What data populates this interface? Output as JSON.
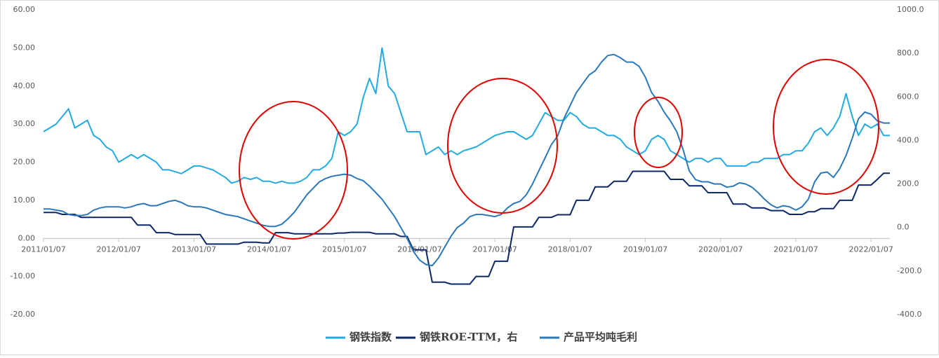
{
  "chart_data": {
    "type": "line",
    "x": [
      "2011/01/07",
      "2011/02/07",
      "2011/03/07",
      "2011/04/07",
      "2011/05/07",
      "2011/06/07",
      "2011/07/07",
      "2011/08/07",
      "2011/09/07",
      "2011/10/07",
      "2011/11/07",
      "2011/12/07",
      "2012/01/07",
      "2012/02/07",
      "2012/03/07",
      "2012/04/07",
      "2012/05/07",
      "2012/06/07",
      "2012/07/07",
      "2012/08/07",
      "2012/09/07",
      "2012/10/07",
      "2012/11/07",
      "2012/12/07",
      "2013/01/07",
      "2013/02/07",
      "2013/03/07",
      "2013/04/07",
      "2013/05/07",
      "2013/06/07",
      "2013/07/07",
      "2013/08/07",
      "2013/09/07",
      "2013/10/07",
      "2013/11/07",
      "2013/12/07",
      "2014/01/07",
      "2014/02/07",
      "2014/03/07",
      "2014/04/07",
      "2014/05/07",
      "2014/06/07",
      "2014/07/07",
      "2014/08/07",
      "2014/09/07",
      "2014/10/07",
      "2014/11/07",
      "2014/12/07",
      "2015/01/07",
      "2015/02/07",
      "2015/03/07",
      "2015/04/07",
      "2015/05/07",
      "2015/06/07",
      "2015/07/07",
      "2015/08/07",
      "2015/09/07",
      "2015/10/07",
      "2015/11/07",
      "2015/12/07",
      "2016/01/07",
      "2016/02/07",
      "2016/03/07",
      "2016/04/07",
      "2016/05/07",
      "2016/06/07",
      "2016/07/07",
      "2016/08/07",
      "2016/09/07",
      "2016/10/07",
      "2016/11/07",
      "2016/12/07",
      "2017/01/07",
      "2017/02/07",
      "2017/03/07",
      "2017/04/07",
      "2017/05/07",
      "2017/06/07",
      "2017/07/07",
      "2017/08/07",
      "2017/09/07",
      "2017/10/07",
      "2017/11/07",
      "2017/12/07",
      "2018/01/07",
      "2018/02/07",
      "2018/03/07",
      "2018/04/07",
      "2018/05/07",
      "2018/06/07",
      "2018/07/07",
      "2018/08/07",
      "2018/09/07",
      "2018/10/07",
      "2018/11/07",
      "2018/12/07",
      "2019/01/07",
      "2019/02/07",
      "2019/03/07",
      "2019/04/07",
      "2019/05/07",
      "2019/06/07",
      "2019/07/07",
      "2019/08/07",
      "2019/09/07",
      "2019/10/07",
      "2019/11/07",
      "2019/12/07",
      "2020/01/07",
      "2020/02/07",
      "2020/03/07",
      "2020/04/07",
      "2020/05/07",
      "2020/06/07",
      "2020/07/07",
      "2020/08/07",
      "2020/09/07",
      "2020/10/07",
      "2020/11/07",
      "2020/12/07",
      "2021/01/07",
      "2021/02/07",
      "2021/03/07",
      "2021/04/07",
      "2021/05/07",
      "2021/06/07",
      "2021/07/07",
      "2021/08/07",
      "2021/09/07",
      "2021/10/07",
      "2021/11/07",
      "2021/12/07",
      "2022/01/07",
      "2022/02/07",
      "2022/03/07",
      "2022/04/07"
    ],
    "series": [
      {
        "name": "钢铁指数",
        "color": "#22aae2",
        "values": [
          28,
          29,
          30,
          32,
          34,
          29,
          30,
          31,
          27,
          26,
          24,
          23,
          20,
          21,
          22,
          21,
          22,
          21,
          20,
          18,
          18,
          17.5,
          17,
          18,
          19,
          19,
          18.5,
          18,
          17,
          16,
          14.5,
          15,
          16,
          15.5,
          16,
          15,
          15,
          14.5,
          15,
          14.5,
          14.5,
          15,
          16,
          18,
          18,
          19,
          21,
          28,
          27,
          28,
          30,
          37,
          42,
          38,
          50,
          40,
          38,
          33,
          28,
          28,
          28,
          22,
          23,
          24,
          22,
          23,
          22,
          23,
          23.5,
          24,
          25,
          26,
          27,
          27.5,
          28,
          28,
          27,
          26,
          27,
          30,
          33,
          32,
          31,
          31,
          33,
          32,
          30,
          29,
          29,
          28,
          27,
          27,
          26,
          24,
          23,
          22,
          23,
          26,
          27,
          26,
          23,
          22,
          21,
          20,
          21,
          21,
          20,
          21,
          21,
          19,
          19,
          19,
          19,
          20,
          20,
          21,
          21,
          21,
          22,
          22,
          23,
          23,
          25,
          28,
          29,
          27,
          29,
          32,
          38,
          32,
          27,
          30,
          29,
          30,
          27,
          27
        ]
      },
      {
        "name": "钢铁ROE-TTM，右",
        "color": "#0c2766",
        "values": [
          6.8,
          6.8,
          6.8,
          6.3,
          6.3,
          6.3,
          5.5,
          5.5,
          5.5,
          5.5,
          5.5,
          5.5,
          5.5,
          5.5,
          5.5,
          3.5,
          3.5,
          3.5,
          1.5,
          1.5,
          1.5,
          1,
          1,
          1,
          1,
          1,
          -1.5,
          -1.5,
          -1.5,
          -1.5,
          -1.5,
          -1.5,
          -1,
          -1,
          -1,
          -1.2,
          -1.2,
          1.5,
          1.5,
          1.5,
          1.2,
          1.2,
          1.2,
          1.2,
          1.2,
          1.2,
          1.2,
          1.4,
          1.4,
          1.6,
          1.6,
          1.6,
          1.6,
          1.2,
          1.2,
          1.2,
          1.2,
          0.5,
          0.5,
          -3,
          -3,
          -3,
          -11.5,
          -11.5,
          -11.5,
          -12,
          -12,
          -12,
          -12,
          -10,
          -10,
          -10,
          -6,
          -6,
          -6,
          3,
          3,
          3,
          3,
          5.5,
          5.5,
          5.5,
          6.2,
          6.2,
          6.2,
          10,
          10,
          10,
          13.5,
          13.5,
          13.5,
          15,
          15,
          15,
          17.6,
          17.6,
          17.6,
          17.6,
          17.6,
          17.6,
          15.5,
          15.5,
          15.5,
          13.8,
          13.8,
          13.8,
          12,
          12,
          12,
          12,
          9,
          9,
          9,
          8,
          8,
          8,
          7.3,
          7.3,
          7.3,
          6.3,
          6.3,
          6.3,
          7,
          7,
          7.8,
          7.8,
          7.8,
          10,
          10,
          10,
          14,
          14,
          14,
          15.5,
          17.1,
          17.1
        ]
      },
      {
        "name": "产品平均吨毛利",
        "color": "#2b78b8",
        "axis": "y2",
        "values": [
          85,
          85,
          80,
          75,
          60,
          55,
          55,
          60,
          80,
          90,
          95,
          95,
          95,
          90,
          95,
          105,
          110,
          100,
          100,
          110,
          120,
          125,
          115,
          100,
          95,
          95,
          90,
          80,
          70,
          60,
          55,
          50,
          40,
          30,
          20,
          10,
          5,
          5,
          15,
          40,
          70,
          110,
          150,
          180,
          210,
          225,
          235,
          240,
          245,
          240,
          225,
          215,
          190,
          160,
          130,
          90,
          50,
          0,
          -50,
          -110,
          -150,
          -170,
          -175,
          -140,
          -90,
          -40,
          0,
          20,
          50,
          60,
          60,
          55,
          50,
          60,
          90,
          110,
          120,
          150,
          200,
          260,
          320,
          380,
          420,
          500,
          560,
          620,
          660,
          700,
          720,
          760,
          790,
          795,
          780,
          760,
          760,
          740,
          690,
          620,
          580,
          530,
          490,
          440,
          360,
          260,
          220,
          210,
          210,
          200,
          200,
          185,
          190,
          205,
          200,
          185,
          160,
          130,
          105,
          90,
          100,
          95,
          80,
          95,
          130,
          210,
          250,
          255,
          230,
          270,
          330,
          410,
          500,
          530,
          520,
          490,
          480,
          480
        ]
      }
    ],
    "xticks": [
      "2011/01/07",
      "2012/01/07",
      "2013/01/07",
      "2014/01/07",
      "2015/01/07",
      "2016/01/07",
      "2017/01/07",
      "2018/01/07",
      "2019/01/07",
      "2020/01/07",
      "2021/01/07",
      "2022/01/07"
    ],
    "ylim": [
      -20,
      60
    ],
    "yticks": [
      {
        "value": -20,
        "label": "-20.00"
      },
      {
        "value": -10,
        "label": "-10.00"
      },
      {
        "value": 0,
        "label": "0.00"
      },
      {
        "value": 10,
        "label": "10.00"
      },
      {
        "value": 20,
        "label": "20.00"
      },
      {
        "value": 30,
        "label": "30.00"
      },
      {
        "value": 40,
        "label": "40.00"
      },
      {
        "value": 50,
        "label": "50.00"
      },
      {
        "value": 60,
        "label": "60.00"
      }
    ],
    "y2lim": [
      -400,
      1000
    ],
    "y2ticks": [
      {
        "value": -400,
        "label": "-400.0"
      },
      {
        "value": -200,
        "label": "-200.0"
      },
      {
        "value": 0,
        "label": "0.0"
      },
      {
        "value": 200,
        "label": "200.0"
      },
      {
        "value": 400,
        "label": "400.0"
      },
      {
        "value": 600,
        "label": "600.0"
      },
      {
        "value": 800,
        "label": "800.0"
      },
      {
        "value": 1000,
        "label": "1000.0"
      }
    ],
    "legend": "bottom"
  }
}
